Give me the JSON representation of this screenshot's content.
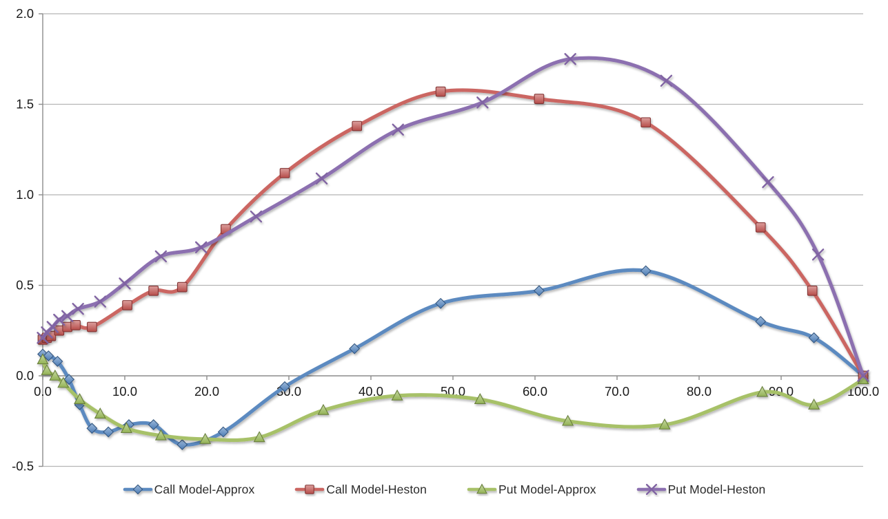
{
  "chart_data": {
    "type": "line",
    "title": "",
    "xlabel": "",
    "ylabel": "",
    "xlim": [
      0,
      100
    ],
    "ylim": [
      -0.5,
      2.0
    ],
    "x_tick_values": [
      0,
      10,
      20,
      30,
      40,
      50,
      60,
      70,
      80,
      90,
      100
    ],
    "x_tick_labels": [
      "0.0",
      "10.0",
      "20.0",
      "30.0",
      "40.0",
      "50.0",
      "60.0",
      "70.0",
      "80.0",
      "90.0",
      "100.0"
    ],
    "y_tick_values": [
      -0.5,
      0.0,
      0.5,
      1.0,
      1.5,
      2.0
    ],
    "y_tick_labels": [
      "-0.5",
      "0.0",
      "0.5",
      "1.0",
      "1.5",
      "2.0"
    ],
    "grid": "horizontal-only",
    "line_style": "smooth",
    "legend_position": "bottom",
    "background_color": "#ffffff",
    "gridline_color": "#b5b5b5",
    "axis_color": "#8c8c8c",
    "tick_label_color": "#1a1a1a",
    "series": [
      {
        "id": "call-approx",
        "name": "Call Model-Approx",
        "marker": "diamond",
        "line_color": "#5b8ac0",
        "marker_color": "#4f81bd",
        "points": [
          [
            0,
            0.12
          ],
          [
            0.7,
            0.11
          ],
          [
            1.8,
            0.08
          ],
          [
            3.2,
            -0.02
          ],
          [
            4.5,
            -0.16
          ],
          [
            6,
            -0.29
          ],
          [
            8,
            -0.31
          ],
          [
            10.5,
            -0.27
          ],
          [
            13.5,
            -0.27
          ],
          [
            17,
            -0.38
          ],
          [
            22,
            -0.31
          ],
          [
            29.5,
            -0.06
          ],
          [
            38,
            0.15
          ],
          [
            48.5,
            0.4
          ],
          [
            60.5,
            0.47
          ],
          [
            73.5,
            0.58
          ],
          [
            87.5,
            0.3
          ],
          [
            94,
            0.21
          ],
          [
            100,
            0.0
          ]
        ]
      },
      {
        "id": "call-heston",
        "name": "Call Model-Heston",
        "marker": "square",
        "line_color": "#cb6662",
        "marker_color": "#c0504d",
        "points": [
          [
            0,
            0.2
          ],
          [
            0.5,
            0.21
          ],
          [
            1,
            0.22
          ],
          [
            2,
            0.25
          ],
          [
            3,
            0.27
          ],
          [
            4,
            0.28
          ],
          [
            6,
            0.27
          ],
          [
            10.3,
            0.39
          ],
          [
            13.5,
            0.47
          ],
          [
            17,
            0.49
          ],
          [
            22.3,
            0.81
          ],
          [
            29.5,
            1.12
          ],
          [
            38.3,
            1.38
          ],
          [
            48.5,
            1.57
          ],
          [
            60.5,
            1.53
          ],
          [
            73.5,
            1.4
          ],
          [
            87.5,
            0.82
          ],
          [
            93.8,
            0.47
          ],
          [
            100,
            0.0
          ]
        ]
      },
      {
        "id": "put-approx",
        "name": "Put Model-Approx",
        "marker": "triangle",
        "line_color": "#a7c167",
        "marker_color": "#9bbb59",
        "points": [
          [
            0,
            0.09
          ],
          [
            0.5,
            0.03
          ],
          [
            1.5,
            0.0
          ],
          [
            2.5,
            -0.04
          ],
          [
            4.5,
            -0.13
          ],
          [
            7,
            -0.21
          ],
          [
            10.2,
            -0.29
          ],
          [
            14.4,
            -0.33
          ],
          [
            19.8,
            -0.35
          ],
          [
            26.4,
            -0.34
          ],
          [
            34.2,
            -0.19
          ],
          [
            43.2,
            -0.11
          ],
          [
            53.3,
            -0.13
          ],
          [
            64,
            -0.25
          ],
          [
            75.8,
            -0.27
          ],
          [
            87.7,
            -0.09
          ],
          [
            94,
            -0.16
          ],
          [
            100,
            -0.02
          ]
        ]
      },
      {
        "id": "put-heston",
        "name": "Put Model-Heston",
        "marker": "x",
        "line_color": "#8c70b0",
        "marker_color": "#8064a2",
        "points": [
          [
            0,
            0.21
          ],
          [
            0.5,
            0.24
          ],
          [
            1.2,
            0.27
          ],
          [
            2,
            0.31
          ],
          [
            3,
            0.33
          ],
          [
            4.3,
            0.37
          ],
          [
            7,
            0.41
          ],
          [
            10,
            0.51
          ],
          [
            14.4,
            0.66
          ],
          [
            19.3,
            0.71
          ],
          [
            26,
            0.88
          ],
          [
            34,
            1.09
          ],
          [
            43.3,
            1.36
          ],
          [
            53.6,
            1.51
          ],
          [
            64.3,
            1.75
          ],
          [
            76,
            1.63
          ],
          [
            88.4,
            1.07
          ],
          [
            94.5,
            0.67
          ],
          [
            100,
            0.0
          ]
        ]
      }
    ]
  }
}
